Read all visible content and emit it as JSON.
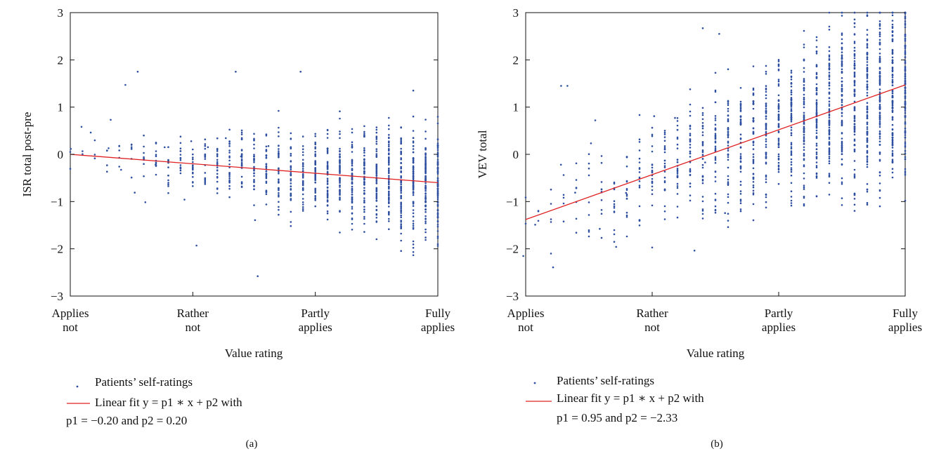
{
  "figure": {
    "panels": [
      {
        "id": "a",
        "panel_label": "(a)",
        "legend": {
          "points_label": "Patients’ self-ratings",
          "fit_line1": "Linear fit y = p1 ∗ x + p2 with",
          "fit_line2": "p1 = −0.20 and p2 = 0.20"
        }
      },
      {
        "id": "b",
        "panel_label": "(b)",
        "legend": {
          "points_label": "Patients’ self-ratings",
          "fit_line1": "Linear fit y = p1 ∗ x + p2 with",
          "fit_line2": "p1 = 0.95 and p2 = −2.33"
        }
      }
    ]
  },
  "colors": {
    "points": "#2e4fa0",
    "fit_line": "#e02020",
    "axis": "#111111"
  },
  "chart_data": [
    {
      "type": "scatter",
      "title": "",
      "xlabel": "Value rating",
      "ylabel": "ISR total post-pre",
      "xlim": [
        1,
        4
      ],
      "ylim": [
        -3,
        3
      ],
      "x_ticks": [
        1,
        2,
        3,
        4
      ],
      "x_tick_labels": [
        [
          "Applies",
          "not"
        ],
        [
          "Rather",
          "not"
        ],
        [
          "Partly",
          "applies"
        ],
        [
          "Fully",
          "applies"
        ]
      ],
      "y_ticks": [
        -3,
        -2,
        -1,
        0,
        1,
        2,
        3
      ],
      "y_tick_labels": [
        "−3",
        "−2",
        "−1",
        "0",
        "1",
        "2",
        "3"
      ],
      "grid": false,
      "legend_position": "bottom",
      "series": [
        {
          "name": "Patients’ self-ratings",
          "kind": "points",
          "x_columns_from": 1.0,
          "x_columns_to": 4.0,
          "column_step": 0.1,
          "spread_at_start": 0.5,
          "spread_at_end": 1.9,
          "approx_points_per_column_start": 2,
          "approx_points_per_column_end": 90,
          "highlighted_outliers": [
            [
              1.45,
              1.47
            ],
            [
              1.55,
              1.75
            ],
            [
              2.35,
              1.75
            ],
            [
              2.88,
              1.75
            ],
            [
              2.03,
              -1.93
            ],
            [
              2.53,
              -2.58
            ],
            [
              3.8,
              1.35
            ],
            [
              1.33,
              0.73
            ]
          ]
        },
        {
          "name": "Linear fit y = p1 ∗ x + p2 with p1 = −0.20 and p2 = 0.20",
          "kind": "line",
          "p1": -0.2,
          "p2": 0.2,
          "x": [
            1,
            4
          ],
          "y": [
            0.0,
            -0.6
          ]
        }
      ]
    },
    {
      "type": "scatter",
      "title": "",
      "xlabel": "Value rating",
      "ylabel": "VEV total",
      "xlim": [
        1,
        4
      ],
      "ylim": [
        -3,
        3
      ],
      "x_ticks": [
        1,
        2,
        3,
        4
      ],
      "x_tick_labels": [
        [
          "Applies",
          "not"
        ],
        [
          "Rather",
          "not"
        ],
        [
          "Partly",
          "applies"
        ],
        [
          "Fully",
          "applies"
        ]
      ],
      "y_ticks": [
        -3,
        -2,
        -1,
        0,
        1,
        2,
        3
      ],
      "y_tick_labels": [
        "−3",
        "−2",
        "−1",
        "0",
        "1",
        "2",
        "3"
      ],
      "grid": false,
      "legend_position": "bottom",
      "series": [
        {
          "name": "Patients’ self-ratings",
          "kind": "points",
          "x_columns_from": 1.0,
          "x_columns_to": 4.0,
          "column_step": 0.1,
          "spread_at_start": 1.0,
          "spread_at_end": 3.0,
          "approx_points_per_column_start": 2,
          "approx_points_per_column_end": 120,
          "highlighted_outliers": [
            [
              1.28,
              1.45
            ],
            [
              1.33,
              1.45
            ],
            [
              1.2,
              -2.1
            ],
            [
              1.55,
              0.72
            ],
            [
              2.4,
              2.67
            ],
            [
              2.53,
              2.55
            ]
          ]
        },
        {
          "name": "Linear fit y = p1 ∗ x + p2 with p1 = 0.95 and p2 = −2.33",
          "kind": "line",
          "p1": 0.95,
          "p2": -2.33,
          "x": [
            1,
            4
          ],
          "y": [
            -1.38,
            1.47
          ]
        }
      ]
    }
  ]
}
